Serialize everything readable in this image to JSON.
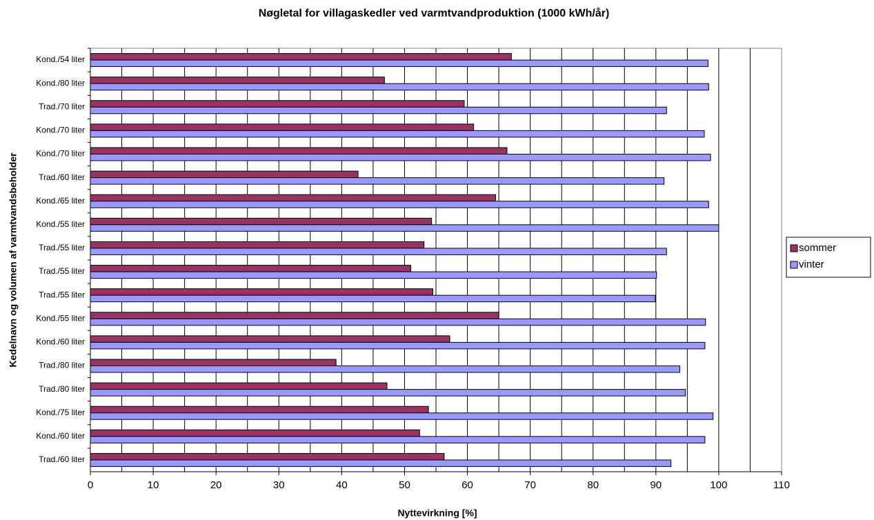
{
  "chart_data": {
    "type": "bar",
    "orientation": "horizontal",
    "title": "Nøgletal for villagaskedler ved varmtvandproduktion (1000 kWh/år)",
    "x_label": "Nyttevirkning [%]",
    "y_label": "Kedelnavn og volumen af  varmtvandsbeholder",
    "categories": [
      "Kond./54 liter",
      "Kond./80 liter",
      "Trad./70 liter",
      "Kond./70 liter",
      "Kond./70 liter",
      "Trad./60 liter",
      "Kond./65 liter",
      "Kond./55 liter",
      "Trad./55 liter",
      "Trad./55 liter",
      "Trad./55 liter",
      "Kond./55 liter",
      "Kond./60 liter",
      "Trad./80 liter",
      "Trad./80 liter",
      "Kond./75 liter",
      "Kond./60 liter",
      "Trad./60 liter"
    ],
    "series": [
      {
        "name": "sommer",
        "color": "#993366",
        "values": [
          67,
          46.8,
          59.5,
          61,
          66.3,
          42.6,
          64.5,
          54.3,
          53.1,
          51,
          54.5,
          65,
          57.2,
          39.1,
          47.2,
          53.8,
          52.4,
          56.3
        ]
      },
      {
        "name": "vinter",
        "color": "#9999ff",
        "values": [
          98.3,
          98.4,
          91.7,
          97.7,
          98.7,
          91.3,
          98.4,
          100,
          91.7,
          90.1,
          89.9,
          97.9,
          97.8,
          93.8,
          94.7,
          99.1,
          97.8,
          92.4
        ]
      }
    ],
    "xlim": [
      0,
      110
    ],
    "xticks": [
      0,
      10,
      20,
      30,
      40,
      50,
      60,
      70,
      80,
      90,
      100,
      110
    ],
    "xgrid": [
      5,
      10,
      15,
      20,
      25,
      30,
      35,
      40,
      45,
      50,
      55,
      60,
      65,
      70,
      75,
      80,
      85,
      90,
      95,
      100,
      105
    ],
    "legend": "right"
  }
}
